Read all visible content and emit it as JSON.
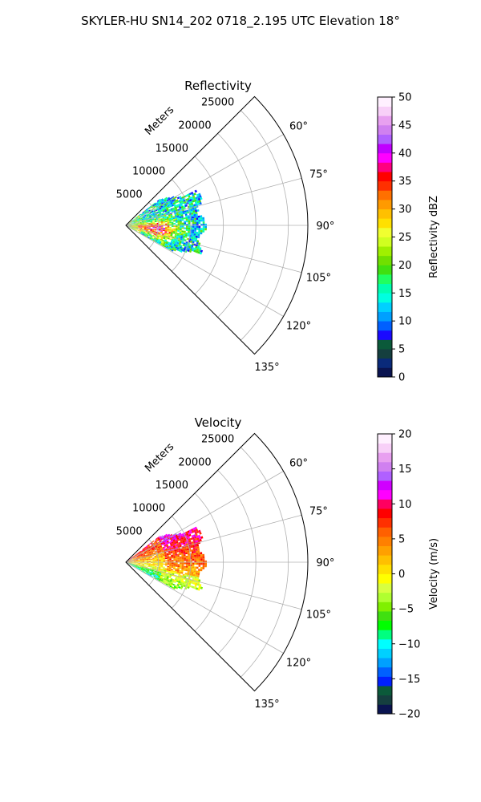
{
  "figure": {
    "title": "SKYLER-HU  SN14_202  0718_2.195 UTC Elevation 18°"
  },
  "chart_data": [
    {
      "type": "polar",
      "title": "Reflectivity",
      "radial_axis_label": "Meters",
      "radial_ticks": [
        5000,
        10000,
        15000,
        20000,
        25000
      ],
      "radial_tick_labels": [
        "5000",
        "10000",
        "15000",
        "20000",
        "25000"
      ],
      "rlim": [
        0,
        28000
      ],
      "azimuth_range_deg": [
        45,
        135
      ],
      "azimuth_ticks_deg": [
        60,
        75,
        90,
        105,
        120,
        135
      ],
      "azimuth_tick_labels": [
        "60°",
        "75°",
        "90°",
        "105°",
        "120°",
        "135°"
      ],
      "grid": true,
      "colorbar": {
        "label": "Reflectivity dBZ",
        "range": [
          0,
          50
        ],
        "ticks": [
          0,
          5,
          10,
          15,
          20,
          25,
          30,
          35,
          40,
          45,
          50
        ],
        "tick_labels": [
          "0",
          "5",
          "10",
          "15",
          "20",
          "25",
          "30",
          "35",
          "40",
          "45",
          "50"
        ],
        "colors": [
          "#0a1450",
          "#0a2a7a",
          "#153f3f",
          "#0b5a3a",
          "#1a0aff",
          "#0060ff",
          "#00a0ff",
          "#00d0ff",
          "#00ffe0",
          "#00ffb0",
          "#20ff60",
          "#40e010",
          "#70e000",
          "#a0f000",
          "#d0ff20",
          "#f0ff30",
          "#ffe000",
          "#ffc000",
          "#ff9a00",
          "#ff7000",
          "#ff3000",
          "#ff0000",
          "#ff0080",
          "#ff00ff",
          "#c000ff",
          "#b060ff",
          "#d080f0",
          "#e8a0f0",
          "#f8d0f8",
          "#fff0ff"
        ]
      },
      "field_extent": {
        "range_m": [
          0,
          13000
        ],
        "azimuth_deg": [
          52,
          118
        ]
      }
    },
    {
      "type": "polar",
      "title": "Velocity",
      "radial_axis_label": "Meters",
      "radial_ticks": [
        5000,
        10000,
        15000,
        20000,
        25000
      ],
      "radial_tick_labels": [
        "5000",
        "10000",
        "15000",
        "20000",
        "25000"
      ],
      "rlim": [
        0,
        28000
      ],
      "azimuth_range_deg": [
        45,
        135
      ],
      "azimuth_ticks_deg": [
        60,
        75,
        90,
        105,
        120,
        135
      ],
      "azimuth_tick_labels": [
        "60°",
        "75°",
        "90°",
        "105°",
        "120°",
        "135°"
      ],
      "grid": true,
      "colorbar": {
        "label": "Velocity (m/s)",
        "range": [
          -20,
          20
        ],
        "ticks": [
          -20,
          -15,
          -10,
          -5,
          0,
          5,
          10,
          15,
          20
        ],
        "tick_labels": [
          "−20",
          "−15",
          "−10",
          "−5",
          "0",
          "5",
          "10",
          "15",
          "20"
        ],
        "colors": [
          "#0a1450",
          "#153f3f",
          "#0b5a3a",
          "#0020ff",
          "#0060ff",
          "#00a0ff",
          "#00d0ff",
          "#00ffff",
          "#00ff80",
          "#00ff00",
          "#40e010",
          "#80f000",
          "#b0ff30",
          "#d8ff40",
          "#ffff00",
          "#ffe000",
          "#ffc000",
          "#ffa000",
          "#ff8000",
          "#ff6000",
          "#ff3000",
          "#ff0000",
          "#ff0060",
          "#ff00ff",
          "#d000ff",
          "#b060ff",
          "#d080f0",
          "#e8a0f0",
          "#f8d0f8",
          "#fff0ff"
        ]
      },
      "field_extent": {
        "range_m": [
          0,
          13000
        ],
        "azimuth_deg": [
          52,
          118
        ]
      }
    }
  ]
}
